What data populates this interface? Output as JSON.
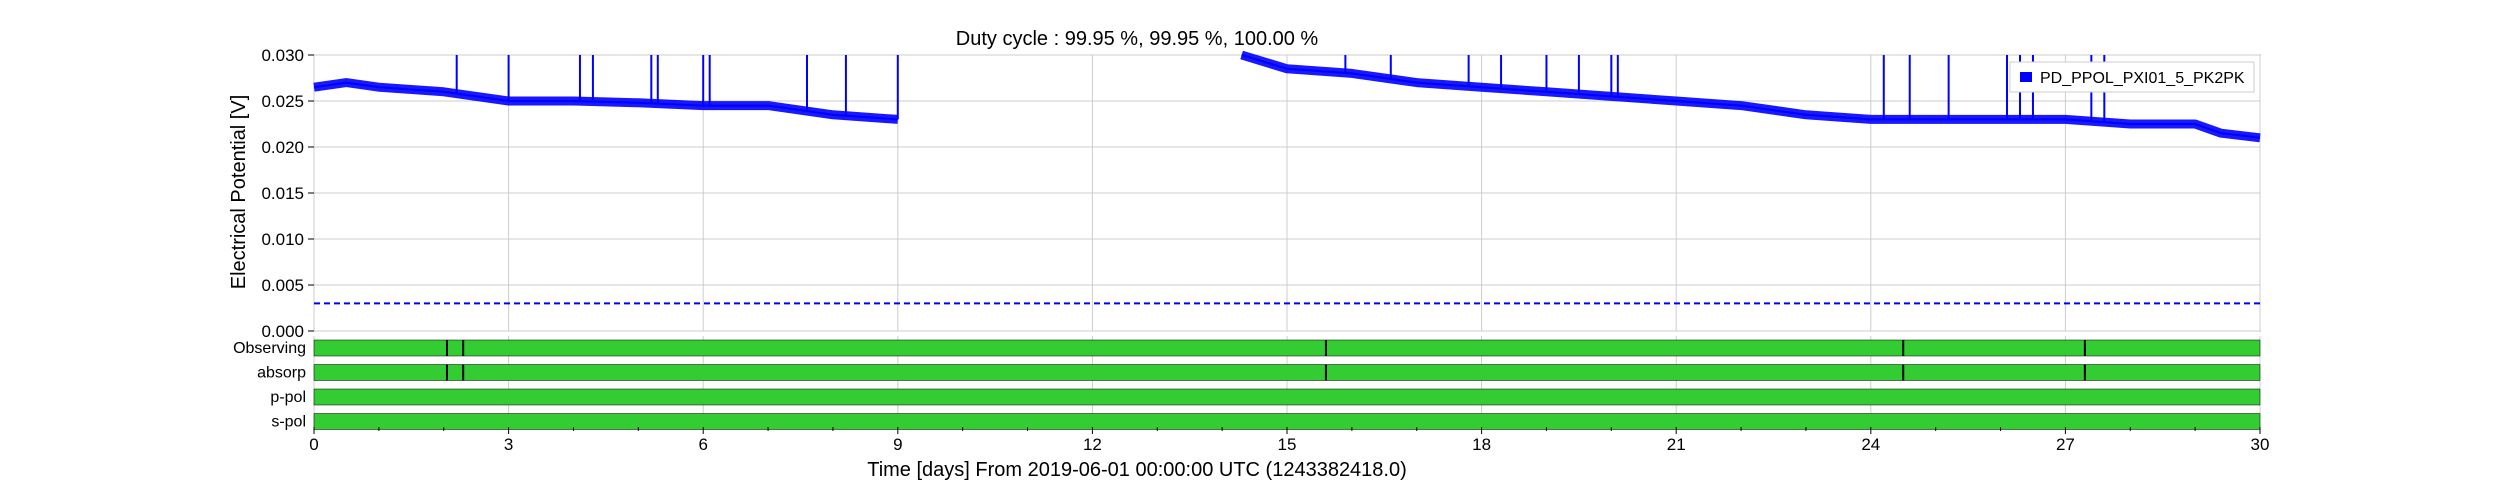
{
  "chart_data": {
    "type": "line",
    "title": "Duty cycle : 99.95 %, 99.95 %, 100.00 %",
    "xlabel": "Time [days] From 2019-06-01 00:00:00 UTC (1243382418.0)",
    "ylabel": "Electrical Potential [V]",
    "xlim": [
      0,
      30
    ],
    "ylim": [
      0,
      0.03
    ],
    "xticks": [
      0,
      3,
      6,
      9,
      12,
      15,
      18,
      21,
      24,
      27,
      30
    ],
    "xtick_labels": [
      "0",
      "3",
      "6",
      "9",
      "12",
      "15",
      "18",
      "21",
      "24",
      "27",
      "30"
    ],
    "yticks": [
      0,
      0.005,
      0.01,
      0.015,
      0.02,
      0.025,
      0.03
    ],
    "ytick_labels": [
      "0.000",
      "0.005",
      "0.010",
      "0.015",
      "0.020",
      "0.025",
      "0.030"
    ],
    "grid": true,
    "legend_position": "top-right",
    "series": [
      {
        "name": "PD_PPOL_PXI01_5_PK2PK",
        "color": "#0000ff",
        "x": [
          0,
          0.5,
          1,
          2,
          3,
          4,
          5,
          6,
          7,
          8,
          9,
          14.3,
          15,
          16,
          17,
          18,
          19,
          20,
          21,
          22,
          23,
          24,
          25,
          26,
          27,
          28,
          29,
          29.4,
          30
        ],
        "y": [
          0.0265,
          0.027,
          0.0265,
          0.026,
          0.025,
          0.025,
          0.0248,
          0.0245,
          0.0245,
          0.0235,
          0.023,
          0.03,
          0.0285,
          0.028,
          0.027,
          0.0265,
          0.026,
          0.0255,
          0.025,
          0.0245,
          0.0235,
          0.023,
          0.023,
          0.023,
          0.023,
          0.0225,
          0.0225,
          0.0215,
          0.021
        ],
        "gaps": [
          [
            9,
            14.3
          ]
        ],
        "spikes_x": [
          2.2,
          3.0,
          4.1,
          4.3,
          5.2,
          5.3,
          6.0,
          6.1,
          7.6,
          8.2,
          9.0,
          15.9,
          16.6,
          17.8,
          18.3,
          19.0,
          19.5,
          20.0,
          20.1,
          24.2,
          24.6,
          25.2,
          26.1,
          26.3,
          26.5,
          27.4,
          27.6
        ]
      }
    ],
    "threshold": {
      "y": 0.003,
      "color": "#0000ff",
      "style": "dashed"
    },
    "segments": [
      {
        "label": "Observing",
        "color": "#33cc33",
        "marks_x": [
          2.05,
          2.3,
          15.6,
          24.5,
          27.3
        ]
      },
      {
        "label": "absorp",
        "color": "#33cc33",
        "marks_x": [
          2.05,
          2.3,
          15.6,
          24.5,
          27.3
        ]
      },
      {
        "label": "p-pol",
        "color": "#33cc33",
        "marks_x": []
      },
      {
        "label": "s-pol",
        "color": "#33cc33",
        "marks_x": []
      }
    ]
  }
}
